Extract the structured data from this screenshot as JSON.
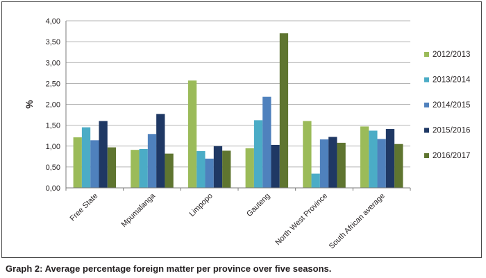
{
  "caption": "Graph 2: Average percentage foreign matter per province over five seasons.",
  "chart_data": {
    "type": "bar",
    "title": "",
    "xlabel": "",
    "ylabel": "%",
    "ylim": [
      0,
      4
    ],
    "ytick_step": 0.5,
    "ytick_labels": [
      "0,00",
      "0,50",
      "1,00",
      "1,50",
      "2,00",
      "2,50",
      "3,00",
      "3,50",
      "4,00"
    ],
    "grid": true,
    "legend_position": "right",
    "categories": [
      "Free State",
      "Mpumalanga",
      "Limpopo",
      "Gauteng",
      "North West Province",
      "South African average"
    ],
    "series": [
      {
        "name": "2012/2013",
        "color": "#9bbb59",
        "values": [
          1.21,
          0.91,
          2.57,
          0.95,
          1.6,
          1.47
        ]
      },
      {
        "name": "2013/2014",
        "color": "#4bacc6",
        "values": [
          1.45,
          0.93,
          0.88,
          1.62,
          0.34,
          1.37
        ]
      },
      {
        "name": "2014/2015",
        "color": "#4f81bd",
        "values": [
          1.14,
          1.29,
          0.7,
          2.18,
          1.16,
          1.17
        ]
      },
      {
        "name": "2015/2016",
        "color": "#1f3864",
        "values": [
          1.6,
          1.77,
          1.0,
          1.03,
          1.22,
          1.41
        ]
      },
      {
        "name": "2016/2017",
        "color": "#5f7530",
        "values": [
          0.97,
          0.82,
          0.89,
          3.7,
          1.08,
          1.05
        ]
      }
    ]
  }
}
